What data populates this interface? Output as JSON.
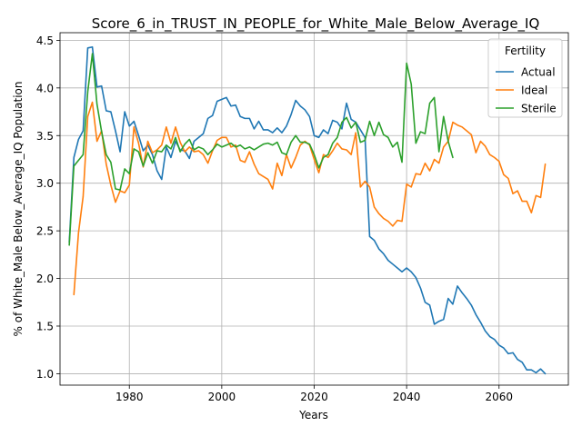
{
  "chart_data": {
    "type": "line",
    "title": "Score_6_in_TRUST_IN_PEOPLE_for_White_Male_Below_Average_IQ",
    "xlabel": "Years",
    "ylabel": "% of White_Male Below_Average_IQ Population",
    "xlim": [
      1965,
      2075
    ],
    "ylim": [
      0.88,
      4.58
    ],
    "x_ticks": [
      1980,
      2000,
      2020,
      2040,
      2060
    ],
    "y_ticks": [
      1.0,
      1.5,
      2.0,
      2.5,
      3.0,
      3.5,
      4.0,
      4.5
    ],
    "y_tick_labels": [
      "1.0",
      "1.5",
      "2.0",
      "2.5",
      "3.0",
      "3.5",
      "4.0",
      "4.5"
    ],
    "grid": true,
    "legend": {
      "title": "Fertility",
      "placement": "top-right"
    },
    "series": [
      {
        "name": "Actual",
        "color": "#1f77b4",
        "x": [
          1967,
          1968,
          1969,
          1970,
          1971,
          1972,
          1973,
          1974,
          1975,
          1976,
          1977,
          1978,
          1979,
          1980,
          1981,
          1982,
          1983,
          1984,
          1985,
          1986,
          1987,
          1988,
          1989,
          1990,
          1991,
          1992,
          1993,
          1994,
          1995,
          1996,
          1997,
          1998,
          1999,
          2000,
          2001,
          2002,
          2003,
          2004,
          2005,
          2006,
          2007,
          2008,
          2009,
          2010,
          2011,
          2012,
          2013,
          2014,
          2015,
          2016,
          2017,
          2018,
          2019,
          2020,
          2021,
          2022,
          2023,
          2024,
          2025,
          2026,
          2027,
          2028,
          2029,
          2030,
          2031,
          2032,
          2033,
          2034,
          2035,
          2036,
          2037,
          2038,
          2039,
          2040,
          2041,
          2042,
          2043,
          2044,
          2045,
          2046,
          2047,
          2048,
          2049,
          2050,
          2051,
          2052,
          2053,
          2054,
          2055,
          2056,
          2057,
          2058,
          2059,
          2060,
          2061,
          2062,
          2063,
          2064,
          2065,
          2066,
          2067,
          2068,
          2069,
          2070
        ],
        "values": [
          2.38,
          3.27,
          3.46,
          3.55,
          4.42,
          4.43,
          4.01,
          4.02,
          3.76,
          3.75,
          3.55,
          3.33,
          3.75,
          3.6,
          3.65,
          3.5,
          3.34,
          3.4,
          3.3,
          3.13,
          3.04,
          3.38,
          3.27,
          3.44,
          3.35,
          3.34,
          3.26,
          3.44,
          3.48,
          3.52,
          3.68,
          3.71,
          3.86,
          3.88,
          3.9,
          3.81,
          3.82,
          3.7,
          3.68,
          3.68,
          3.57,
          3.65,
          3.56,
          3.56,
          3.53,
          3.58,
          3.53,
          3.6,
          3.72,
          3.87,
          3.81,
          3.77,
          3.7,
          3.5,
          3.48,
          3.56,
          3.52,
          3.66,
          3.64,
          3.57,
          3.84,
          3.67,
          3.64,
          3.56,
          3.48,
          2.44,
          2.4,
          2.31,
          2.26,
          2.19,
          2.15,
          2.11,
          2.07,
          2.11,
          2.07,
          2.01,
          1.9,
          1.75,
          1.72,
          1.52,
          1.55,
          1.57,
          1.79,
          1.73,
          1.92,
          1.85,
          1.79,
          1.72,
          1.62,
          1.54,
          1.45,
          1.39,
          1.36,
          1.3,
          1.27,
          1.21,
          1.22,
          1.15,
          1.12,
          1.04,
          1.04,
          1.01,
          1.05,
          1.0
        ]
      },
      {
        "name": "Ideal",
        "color": "#ff7f0e",
        "x": [
          1968,
          1969,
          1970,
          1971,
          1972,
          1973,
          1974,
          1975,
          1976,
          1977,
          1978,
          1979,
          1980,
          1981,
          1982,
          1983,
          1984,
          1985,
          1986,
          1987,
          1988,
          1989,
          1990,
          1991,
          1992,
          1993,
          1994,
          1995,
          1996,
          1997,
          1998,
          1999,
          2000,
          2001,
          2002,
          2003,
          2004,
          2005,
          2006,
          2007,
          2008,
          2009,
          2010,
          2011,
          2012,
          2013,
          2014,
          2015,
          2016,
          2017,
          2018,
          2019,
          2020,
          2021,
          2022,
          2023,
          2024,
          2025,
          2026,
          2027,
          2028,
          2029,
          2030,
          2031,
          2032,
          2033,
          2034,
          2035,
          2036,
          2037,
          2038,
          2039,
          2040,
          2041,
          2042,
          2043,
          2044,
          2045,
          2046,
          2047,
          2048,
          2049,
          2050,
          2051,
          2052,
          2053,
          2054,
          2055,
          2056,
          2057,
          2058,
          2059,
          2060,
          2061,
          2062,
          2063,
          2064,
          2065,
          2066,
          2067,
          2068,
          2069,
          2070
        ],
        "values": [
          1.83,
          2.48,
          2.86,
          3.7,
          3.85,
          3.44,
          3.55,
          3.2,
          2.98,
          2.8,
          2.92,
          2.9,
          2.98,
          3.59,
          3.42,
          3.17,
          3.44,
          3.32,
          3.35,
          3.4,
          3.59,
          3.42,
          3.59,
          3.43,
          3.33,
          3.38,
          3.33,
          3.34,
          3.3,
          3.21,
          3.34,
          3.45,
          3.48,
          3.48,
          3.38,
          3.4,
          3.24,
          3.22,
          3.33,
          3.2,
          3.1,
          3.07,
          3.04,
          2.94,
          3.21,
          3.08,
          3.3,
          3.16,
          3.27,
          3.4,
          3.44,
          3.4,
          3.25,
          3.11,
          3.3,
          3.27,
          3.34,
          3.42,
          3.36,
          3.35,
          3.3,
          3.53,
          2.96,
          3.02,
          2.96,
          2.75,
          2.68,
          2.63,
          2.6,
          2.55,
          2.61,
          2.6,
          2.99,
          2.96,
          3.1,
          3.09,
          3.21,
          3.13,
          3.25,
          3.21,
          3.38,
          3.44,
          3.64,
          3.61,
          3.59,
          3.55,
          3.51,
          3.32,
          3.44,
          3.39,
          3.3,
          3.27,
          3.23,
          3.09,
          3.05,
          2.89,
          2.92,
          2.81,
          2.81,
          2.69,
          2.87,
          2.85,
          3.2
        ]
      },
      {
        "name": "Sterile",
        "color": "#2ca02c",
        "x": [
          1967,
          1968,
          1969,
          1970,
          1971,
          1972,
          1973,
          1974,
          1975,
          1976,
          1977,
          1978,
          1979,
          1980,
          1981,
          1982,
          1983,
          1984,
          1985,
          1986,
          1987,
          1988,
          1989,
          1990,
          1991,
          1992,
          1993,
          1994,
          1995,
          1996,
          1997,
          1998,
          1999,
          2000,
          2001,
          2002,
          2003,
          2004,
          2005,
          2006,
          2007,
          2008,
          2009,
          2010,
          2011,
          2012,
          2013,
          2014,
          2015,
          2016,
          2017,
          2018,
          2019,
          2020,
          2021,
          2022,
          2023,
          2024,
          2025,
          2026,
          2027,
          2028,
          2029,
          2030,
          2031,
          2032,
          2033,
          2034,
          2035,
          2036,
          2037,
          2038,
          2039,
          2040,
          2041,
          2042,
          2043,
          2044,
          2045,
          2046,
          2047,
          2048,
          2049,
          2050
        ],
        "values": [
          2.35,
          3.18,
          3.24,
          3.3,
          3.96,
          4.36,
          3.83,
          3.54,
          3.3,
          3.22,
          2.94,
          2.93,
          3.15,
          3.1,
          3.36,
          3.33,
          3.18,
          3.32,
          3.21,
          3.34,
          3.33,
          3.4,
          3.36,
          3.48,
          3.33,
          3.41,
          3.46,
          3.35,
          3.38,
          3.36,
          3.3,
          3.35,
          3.41,
          3.38,
          3.4,
          3.42,
          3.38,
          3.4,
          3.36,
          3.38,
          3.35,
          3.38,
          3.41,
          3.42,
          3.4,
          3.43,
          3.32,
          3.3,
          3.43,
          3.5,
          3.43,
          3.43,
          3.41,
          3.3,
          3.16,
          3.27,
          3.3,
          3.42,
          3.48,
          3.64,
          3.69,
          3.58,
          3.64,
          3.43,
          3.45,
          3.65,
          3.5,
          3.64,
          3.51,
          3.48,
          3.38,
          3.43,
          3.22,
          4.26,
          4.04,
          3.42,
          3.54,
          3.52,
          3.84,
          3.9,
          3.33,
          3.7,
          3.44,
          3.27
        ]
      }
    ]
  }
}
